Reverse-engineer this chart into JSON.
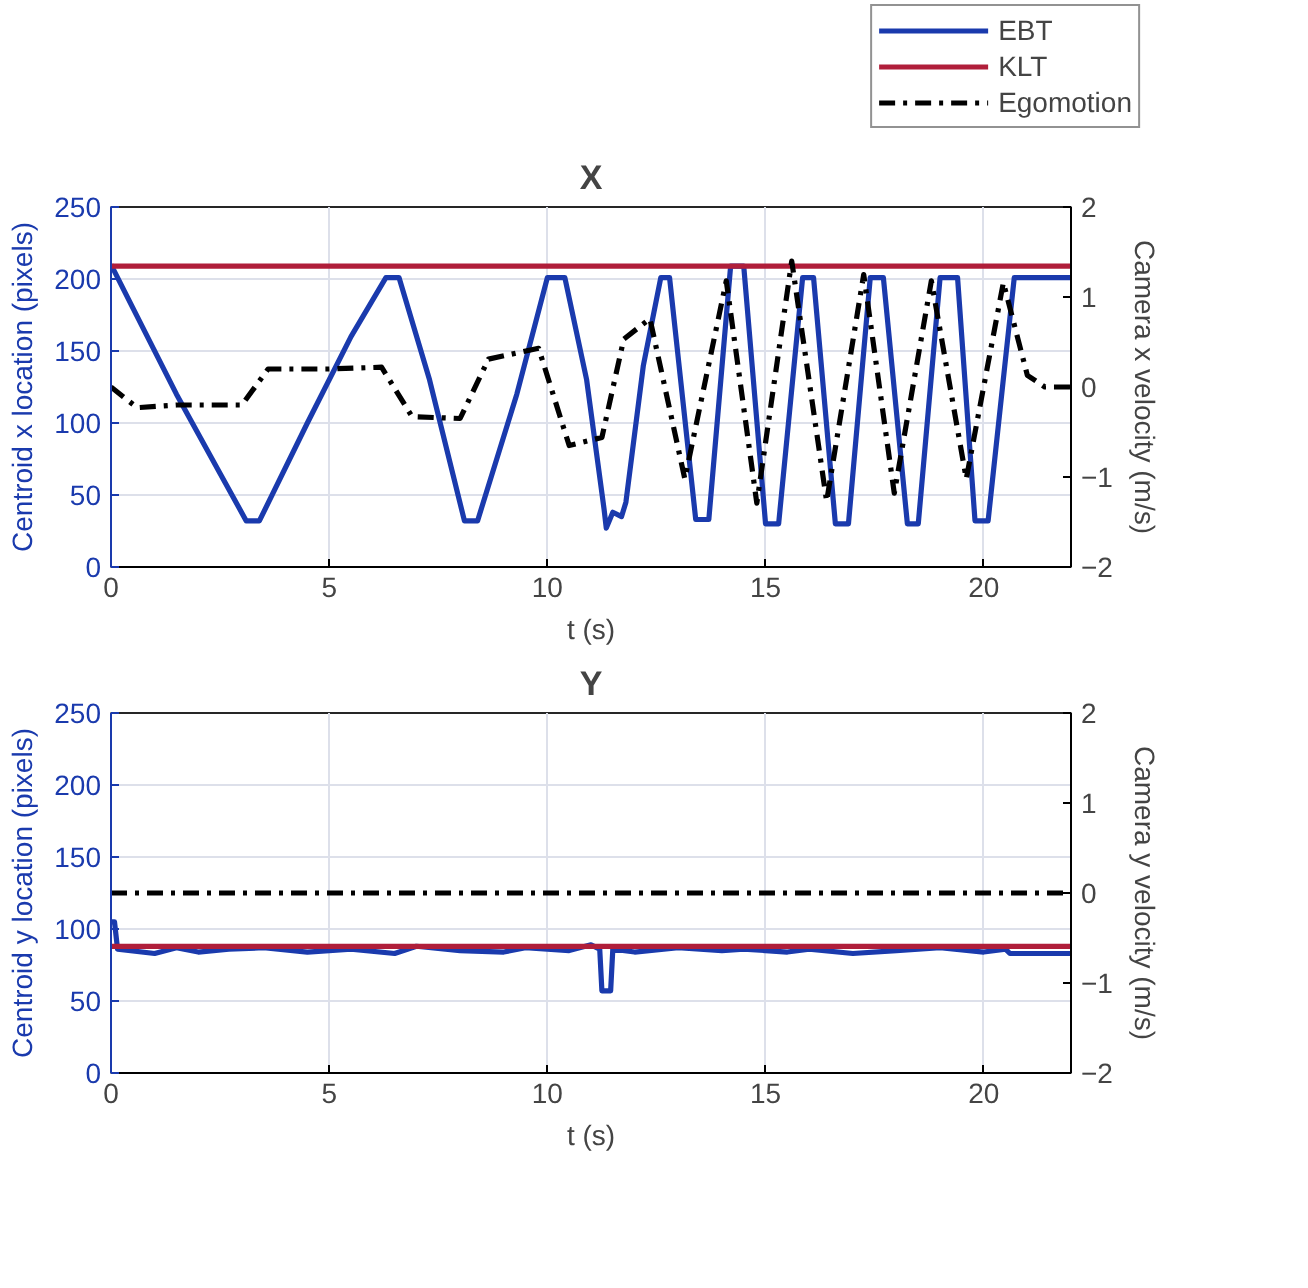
{
  "chart_data": [
    {
      "type": "line",
      "title": "X",
      "xlabel": "t (s)",
      "ylabel": "Centroid x location (pixels)",
      "y2label": "Camera x velocity (m/s)",
      "xlim": [
        0,
        22
      ],
      "xticks": [
        0,
        5,
        10,
        15,
        20
      ],
      "ylim": [
        0,
        250
      ],
      "yticks": [
        0,
        50,
        100,
        150,
        200,
        250
      ],
      "y2lim": [
        -2,
        2
      ],
      "y2ticks": [
        -2,
        -1,
        0,
        1,
        2
      ],
      "grid": true,
      "legend": "top right",
      "series": [
        {
          "name": "EBT",
          "color": "#1a3aad",
          "line_style": "solid",
          "x": [
            0,
            0.5,
            1.5,
            2.5,
            3.1,
            3.4,
            4.5,
            5.5,
            6.3,
            6.6,
            7.3,
            8.1,
            8.4,
            9.3,
            10.0,
            10.4,
            10.9,
            11.3,
            11.35,
            11.5,
            11.7,
            11.8,
            12.2,
            12.6,
            12.8,
            13.4,
            13.7,
            14.2,
            14.5,
            15.0,
            15.3,
            15.85,
            16.1,
            16.6,
            16.9,
            17.4,
            17.7,
            18.25,
            18.5,
            19.0,
            19.4,
            19.8,
            20.1,
            20.7,
            22
          ],
          "values": [
            210,
            180,
            120,
            65,
            32,
            32,
            100,
            160,
            201,
            201,
            130,
            32,
            32,
            120,
            201,
            201,
            130,
            40,
            27,
            38,
            35,
            45,
            140,
            201,
            201,
            33,
            33,
            209,
            209,
            30,
            30,
            201,
            201,
            30,
            30,
            201,
            201,
            30,
            30,
            201,
            201,
            32,
            32,
            201,
            201
          ]
        },
        {
          "name": "KLT",
          "color": "#b01e3a",
          "line_style": "solid",
          "x": [
            0,
            22
          ],
          "values": [
            209,
            209
          ]
        },
        {
          "name": "Egomotion",
          "color": "#000000",
          "line_style": "dashdot",
          "axis": "y2",
          "x": [
            0,
            0.6,
            1.5,
            3.0,
            3.6,
            5.0,
            6.2,
            6.9,
            8.0,
            8.65,
            9.8,
            10.5,
            11.25,
            11.75,
            12.35,
            13.15,
            14.1,
            14.8,
            15.6,
            16.4,
            17.25,
            17.95,
            18.8,
            19.6,
            20.45,
            21.0,
            21.4,
            22
          ],
          "values": [
            0,
            -0.23,
            -0.2,
            -0.2,
            0.2,
            0.2,
            0.22,
            -0.33,
            -0.35,
            0.31,
            0.43,
            -0.65,
            -0.56,
            0.53,
            0.76,
            -1.02,
            1.18,
            -1.29,
            1.4,
            -1.27,
            1.25,
            -1.18,
            1.18,
            -1.02,
            1.16,
            0.13,
            0,
            0
          ]
        }
      ]
    },
    {
      "type": "line",
      "title": "Y",
      "xlabel": "t (s)",
      "ylabel": "Centroid y location (pixels)",
      "y2label": "Camera y velocity (m/s)",
      "xlim": [
        0,
        22
      ],
      "xticks": [
        0,
        5,
        10,
        15,
        20
      ],
      "ylim": [
        0,
        250
      ],
      "yticks": [
        0,
        50,
        100,
        150,
        200,
        250
      ],
      "y2lim": [
        -2,
        2
      ],
      "y2ticks": [
        -2,
        -1,
        0,
        1,
        2
      ],
      "grid": true,
      "series": [
        {
          "color": "#1a3aad",
          "line_style": "solid",
          "x": [
            0,
            0.08,
            0.15,
            1,
            1.5,
            2,
            2.7,
            3.5,
            4.5,
            5.5,
            6.5,
            7,
            8,
            9,
            9.5,
            10,
            10.5,
            11,
            11.2,
            11.25,
            11.45,
            11.5,
            12,
            13,
            14,
            14.5,
            15,
            15.5,
            16,
            17,
            18,
            19,
            20,
            20.5,
            20.6,
            22
          ],
          "values": [
            105,
            105,
            86,
            83,
            87,
            84,
            86,
            87,
            84,
            86,
            83,
            88,
            85,
            84,
            87,
            86,
            85,
            89,
            86,
            57,
            57,
            86,
            84,
            87,
            85,
            86,
            85,
            84,
            86,
            83,
            85,
            87,
            84,
            86,
            83,
            83
          ]
        },
        {
          "color": "#b01e3a",
          "line_style": "solid",
          "x": [
            0,
            22
          ],
          "values": [
            88,
            88
          ]
        },
        {
          "color": "#000000",
          "line_style": "dashdot",
          "axis": "y2",
          "x": [
            0,
            22
          ],
          "values": [
            0,
            0
          ]
        }
      ]
    }
  ]
}
